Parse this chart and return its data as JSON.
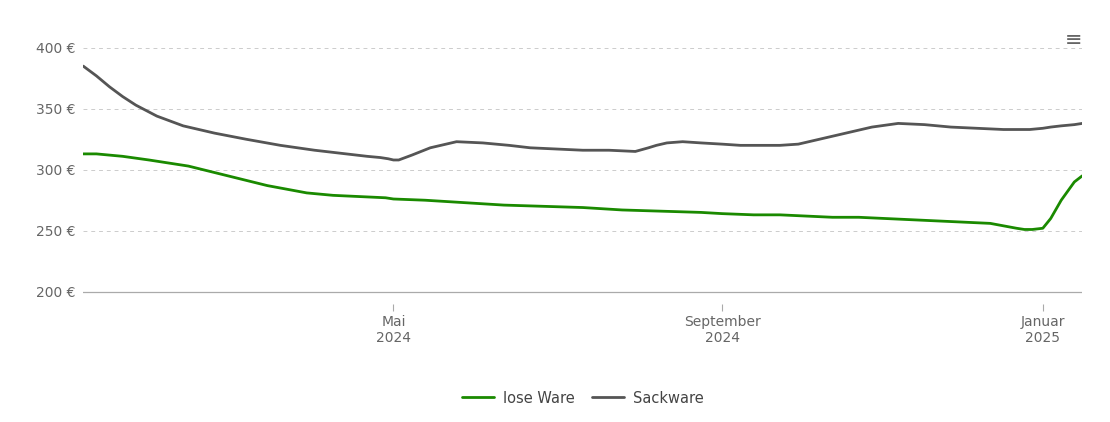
{
  "background_color": "#ffffff",
  "lose_ware_color": "#1a8a00",
  "sackware_color": "#555555",
  "line_width": 2.0,
  "legend_labels": [
    "lose Ware",
    "Sackware"
  ],
  "ylim": [
    190,
    415
  ],
  "yticks": [
    200,
    250,
    300,
    350,
    400
  ],
  "ytick_labels": [
    "200 €",
    "250 €",
    "300 €",
    "350 €",
    "400 €"
  ],
  "xlim": [
    0,
    380
  ],
  "xtick_positions": [
    118,
    243,
    365
  ],
  "xtick_labels": [
    "Mai\n2024",
    "September\n2024",
    "Januar\n2025"
  ],
  "lose_ware": {
    "x": [
      0,
      5,
      15,
      25,
      40,
      55,
      70,
      85,
      95,
      105,
      115,
      118,
      130,
      145,
      160,
      175,
      190,
      205,
      220,
      235,
      243,
      255,
      265,
      275,
      285,
      295,
      305,
      315,
      325,
      335,
      345,
      355,
      358,
      361,
      365,
      368,
      372,
      377,
      380
    ],
    "y": [
      313,
      313,
      311,
      308,
      303,
      295,
      287,
      281,
      279,
      278,
      277,
      276,
      275,
      273,
      271,
      270,
      269,
      267,
      266,
      265,
      264,
      263,
      263,
      262,
      261,
      261,
      260,
      259,
      258,
      257,
      256,
      252,
      251,
      251,
      252,
      260,
      275,
      290,
      295
    ]
  },
  "sackware": {
    "x": [
      0,
      5,
      10,
      15,
      20,
      28,
      38,
      50,
      62,
      75,
      88,
      100,
      108,
      113,
      116,
      118,
      120,
      125,
      132,
      142,
      152,
      162,
      170,
      180,
      190,
      200,
      210,
      215,
      218,
      222,
      228,
      235,
      243,
      250,
      258,
      265,
      272,
      280,
      290,
      300,
      310,
      320,
      330,
      340,
      350,
      360,
      365,
      368,
      372,
      377,
      380
    ],
    "y": [
      385,
      377,
      368,
      360,
      353,
      344,
      336,
      330,
      325,
      320,
      316,
      313,
      311,
      310,
      309,
      308,
      308,
      312,
      318,
      323,
      322,
      320,
      318,
      317,
      316,
      316,
      315,
      318,
      320,
      322,
      323,
      322,
      321,
      320,
      320,
      320,
      321,
      325,
      330,
      335,
      338,
      337,
      335,
      334,
      333,
      333,
      334,
      335,
      336,
      337,
      338
    ]
  }
}
